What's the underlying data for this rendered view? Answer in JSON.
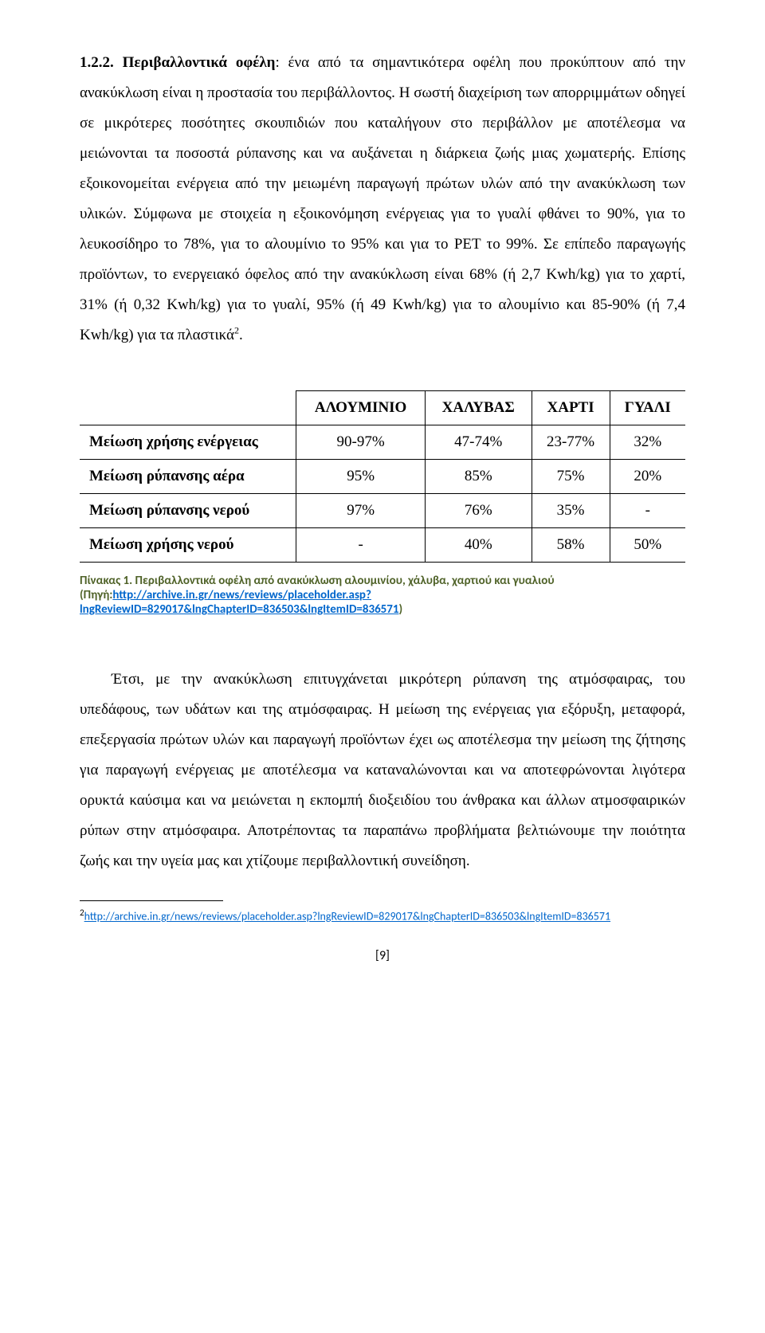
{
  "heading_num": "1.2.2.",
  "heading_title": "Περιβαλλοντικά οφέλη",
  "heading_rest": ": ένα από τα σημαντικότερα οφέλη που προκύπτουν από την ανακύκλωση είναι η προστασία του περιβάλλοντος. Η σωστή διαχείριση των απορριμμάτων οδηγεί σε μικρότερες ποσότητες σκουπιδιών που καταλήγουν στο περιβάλλον με αποτέλεσμα να μειώνονται τα ποσοστά ρύπανσης και να αυξάνεται η διάρκεια ζωής μιας χωματερής. Επίσης εξοικονομείται ενέργεια από την μειωμένη παραγωγή πρώτων υλών από την ανακύκλωση των υλικών. Σύμφωνα με στοιχεία η εξοικονόμηση ενέργειας για το γυαλί φθάνει το 90%, για το λευκοσίδηρο το 78%, για το αλουμίνιο το 95% και για το PET το 99%. Σε επίπεδο παραγωγής προϊόντων, το ενεργειακό όφελος από την ανακύκλωση είναι 68% (ή 2,7 Kwh/kg) για το χαρτί, 31% (ή 0,32 Kwh/kg) για το γυαλί, 95% (ή 49 Kwh/kg) για το αλουμίνιο και 85-90% (ή 7,4 Kwh/kg) για τα πλαστικά",
  "footnote_marker": "2",
  "table": {
    "headers": [
      "ΑΛΟΥΜΙΝΙΟ",
      "ΧΑΛΥΒΑΣ",
      "ΧΑΡΤΙ",
      "ΓΥΑΛΙ"
    ],
    "rows": [
      {
        "label": "Μείωση χρήσης ενέργειας",
        "cells": [
          "90-97%",
          "47-74%",
          "23-77%",
          "32%"
        ]
      },
      {
        "label": "Μείωση ρύπανσης αέρα",
        "cells": [
          "95%",
          "85%",
          "75%",
          "20%"
        ]
      },
      {
        "label": "Μείωση ρύπανσης νερού",
        "cells": [
          "97%",
          "76%",
          "35%",
          "-"
        ]
      },
      {
        "label": "Μείωση χρήσης νερού",
        "cells": [
          "-",
          "40%",
          "58%",
          "50%"
        ]
      }
    ]
  },
  "caption_lead": "Πίνακας 1. Περιβαλλοντικά οφέλη από ανακύκλωση αλουμινίου, χάλυβα, χαρτιού και γυαλιού",
  "caption_src_label": "(Πηγή:",
  "caption_link_text": "http://archive.in.gr/news/reviews/placeholder.asp?lngReviewID=829017&lngChapterID=836503&lngItemID=836571",
  "caption_close": ")",
  "para2": "Έτσι, με την ανακύκλωση επιτυγχάνεται μικρότερη ρύπανση της ατμόσφαιρας, του υπεδάφους, των υδάτων και της ατμόσφαιρας. Η μείωση της ενέργειας για εξόρυξη, μεταφορά, επεξεργασία πρώτων υλών και παραγωγή προϊόντων έχει ως αποτέλεσμα την μείωση της ζήτησης για παραγωγή ενέργειας με αποτέλεσμα να καταναλώνονται και να αποτεφρώνονται λιγότερα ορυκτά καύσιμα και να μειώνεται η εκπομπή διοξειδίου του άνθρακα και άλλων ατμοσφαιρικών ρύπων στην ατμόσφαιρα. Αποτρέποντας τα παραπάνω προβλήματα βελτιώνουμε την ποιότητα ζωής και την υγεία μας και χτίζουμε περιβαλλοντική συνείδηση.",
  "footnote_num": "2",
  "footnote_link_text": "http://archive.in.gr/news/reviews/placeholder.asp?lngReviewID=829017&lngChapterID=836503&lngItemID=836571",
  "page_number": "[9]"
}
